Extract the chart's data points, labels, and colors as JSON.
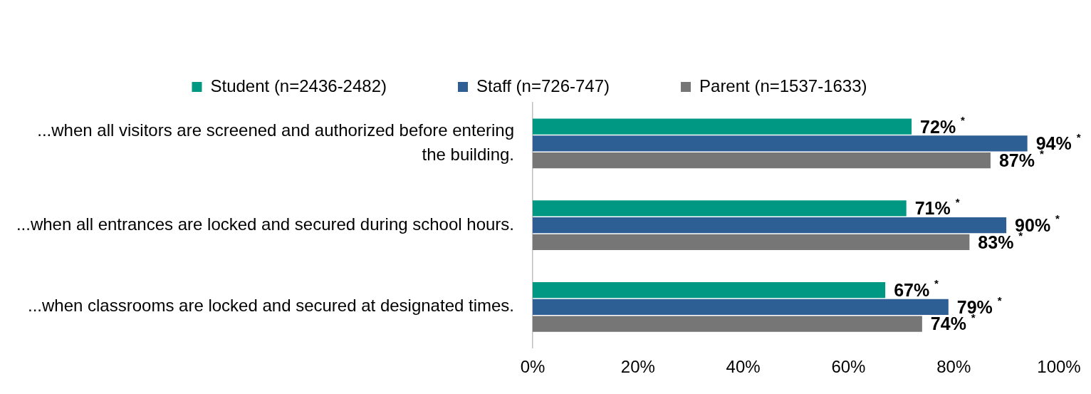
{
  "chart_data": {
    "type": "bar",
    "orientation": "horizontal",
    "categories": [
      "...when all visitors are screened and authorized before entering the building.",
      "...when all entrances are locked and secured during school hours.",
      "...when classrooms are locked and secured at designated times."
    ],
    "series": [
      {
        "name": "Student (n=2436-2482)",
        "color": "#009882",
        "values": [
          72,
          71,
          67
        ],
        "value_labels": [
          "72% $^{*}$",
          "71% $^{*}$",
          "67% $^{*}$"
        ]
      },
      {
        "name": "Staff (n=726-747)",
        "color": "#2e5f94",
        "values": [
          94,
          90,
          79
        ],
        "value_labels": [
          "94% $^{*}$",
          "90% $^{*}$",
          "79% $^{*}$"
        ]
      },
      {
        "name": "Parent (n=1537-1633)",
        "color": "#767676",
        "values": [
          87,
          83,
          74
        ],
        "value_labels": [
          "87% $^{*}$",
          "83% $^{*}$",
          "74% $^{*}$"
        ]
      }
    ],
    "xlim": [
      0,
      100
    ],
    "xticks": [
      {
        "value": 0,
        "label": "0%"
      },
      {
        "value": 20,
        "label": "20%"
      },
      {
        "value": 40,
        "label": "40%"
      },
      {
        "value": 60,
        "label": "60%"
      },
      {
        "value": 80,
        "label": "80%"
      },
      {
        "value": 100,
        "label": "100%"
      }
    ],
    "legend": "top"
  }
}
